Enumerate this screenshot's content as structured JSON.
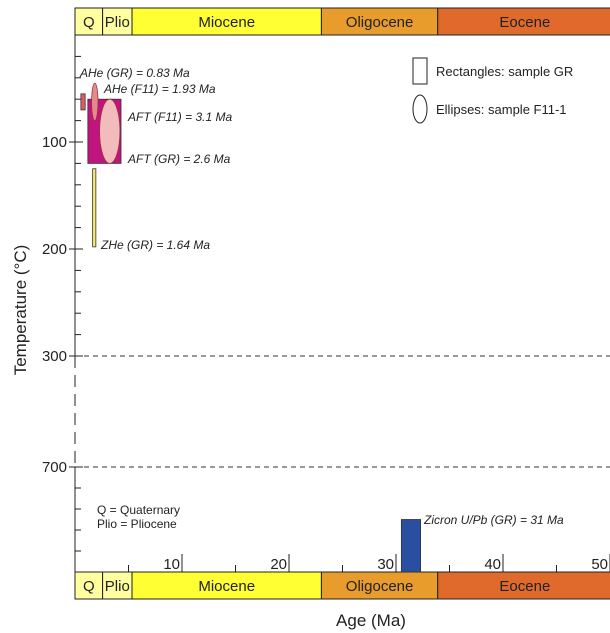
{
  "chart_data": {
    "type": "bar",
    "xlabel": "Age (Ma)",
    "ylabel": "Temperature (°C)",
    "xlim": [
      0,
      50
    ],
    "x_ticks": [
      {
        "value": 10,
        "label": "10"
      },
      {
        "value": 20,
        "label": "20"
      },
      {
        "value": 30,
        "label": "30"
      },
      {
        "value": 40,
        "label": "40"
      },
      {
        "value": 50,
        "label": "50"
      }
    ],
    "y_ticks": [
      {
        "value": 100,
        "label": "100"
      },
      {
        "value": 200,
        "label": "200"
      },
      {
        "value": 300,
        "label": "300"
      },
      {
        "value": 700,
        "label": "700"
      }
    ],
    "axis_break": {
      "from": 300,
      "to": 700,
      "style": "dashed"
    },
    "epochs": [
      {
        "label": "Q",
        "start": 0,
        "end": 2.58,
        "color": "#ffffa0"
      },
      {
        "label": "Plio",
        "start": 2.58,
        "end": 5.33,
        "color": "#ffffa0"
      },
      {
        "label": "Miocene",
        "start": 5.33,
        "end": 23.03,
        "color": "#ffff33"
      },
      {
        "label": "Oligocene",
        "start": 23.03,
        "end": 33.9,
        "color": "#e89c2c"
      },
      {
        "label": "Eocene",
        "start": 33.9,
        "end": 56,
        "color": "#e06a2c"
      }
    ],
    "samples": [
      {
        "name": "AHe (GR) = 0.83 Ma",
        "shape": "rect",
        "age_min": 0.55,
        "age_max": 0.95,
        "t_min": 55,
        "t_max": 70,
        "color": "#e35a66"
      },
      {
        "name": "AHe (F11) = 1.93 Ma",
        "shape": "ellipse",
        "age_min": 1.55,
        "age_max": 2.15,
        "t_min": 45,
        "t_max": 80,
        "color": "#e38a8a"
      },
      {
        "name": "AFT (GR) = 2.6 Ma",
        "shape": "rect",
        "age_min": 1.2,
        "age_max": 4.3,
        "t_min": 60,
        "t_max": 120,
        "color": "#c0147e"
      },
      {
        "name": "AFT (F11) = 3.1 Ma",
        "shape": "ellipse",
        "age_min": 2.3,
        "age_max": 4.2,
        "t_min": 60,
        "t_max": 120,
        "color": "#f2bcbc"
      },
      {
        "name": "ZHe (GR) = 1.64 Ma",
        "shape": "rect",
        "age_min": 1.65,
        "age_max": 1.95,
        "t_min": 125,
        "t_max": 198,
        "color": "#f5ec6a"
      },
      {
        "name": "Zicron U/Pb (GR) = 31 Ma",
        "shape": "rect",
        "age_min": 30.5,
        "age_max": 32.3,
        "t_min": 750,
        "t_max": 800,
        "color": "#2a4ea0"
      }
    ],
    "legend": [
      {
        "label": "Rectangles: sample GR",
        "shape": "rect"
      },
      {
        "label": "Ellipses: sample F11-1",
        "shape": "ellipse"
      }
    ],
    "legend_position": "top-right",
    "notes": [
      "Q = Quaternary",
      "Plio = Pliocene"
    ]
  }
}
